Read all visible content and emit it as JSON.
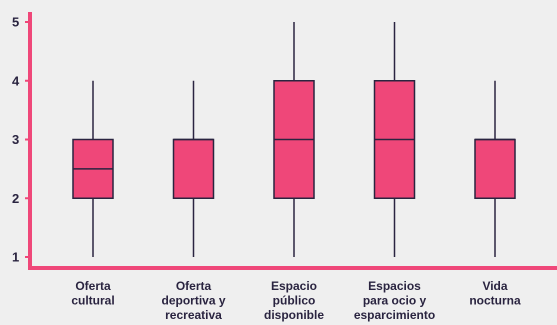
{
  "chart_data": {
    "type": "boxplot",
    "title": "",
    "xlabel": "",
    "ylabel": "",
    "ylim": [
      0.8,
      5.25
    ],
    "y_ticks": [
      "1",
      "2",
      "3",
      "4",
      "5"
    ],
    "grid": false,
    "categories": [
      [
        "Oferta",
        "cultural"
      ],
      [
        "Oferta",
        "deportiva y",
        "recreativa"
      ],
      [
        "Espacio",
        "público",
        "disponible"
      ],
      [
        "Espacios",
        "para ocio y",
        "esparcimiento"
      ],
      [
        "Vida",
        "nocturna"
      ]
    ],
    "boxes": [
      {
        "min": 1,
        "q1": 2,
        "median": 2.5,
        "q3": 3,
        "max": 4
      },
      {
        "min": 1,
        "q1": 2,
        "median": 3,
        "q3": 3,
        "max": 4
      },
      {
        "min": 1,
        "q1": 2,
        "median": 3,
        "q3": 4,
        "max": 5
      },
      {
        "min": 1,
        "q1": 2,
        "median": 3,
        "q3": 4,
        "max": 5
      },
      {
        "min": 1,
        "q1": 2,
        "median": 3,
        "q3": 3,
        "max": 4
      }
    ],
    "colors": {
      "box_fill": "#ef4779",
      "axis": "#ef4779",
      "stroke": "#2a2440",
      "background": "#efefef",
      "text": "#2a2440"
    }
  }
}
